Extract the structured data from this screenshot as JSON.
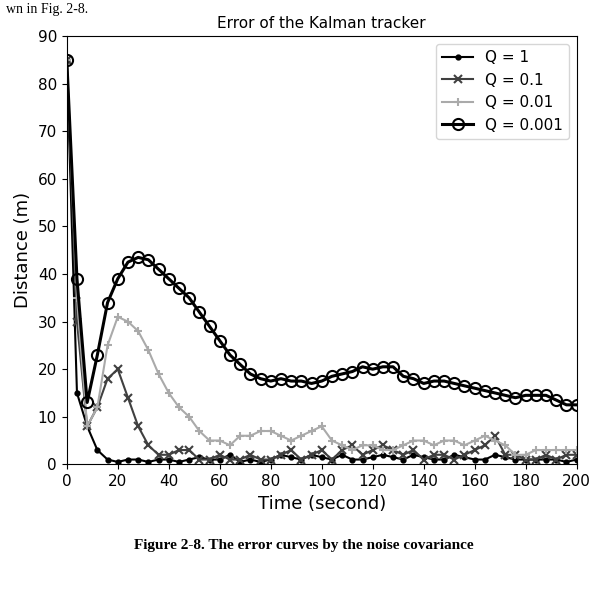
{
  "chart_data": {
    "type": "line",
    "title": "Error of the Kalman tracker",
    "x_label": "Time (second)",
    "y_label": "Distance (m)",
    "annotations": [
      {
        "text": "wn in Fig. 2-8."
      },
      {
        "text": "Figure 2-8. The error curves by the noise covariance"
      }
    ],
    "x": [
      0,
      4,
      8,
      12,
      16,
      20,
      24,
      28,
      32,
      36,
      40,
      44,
      48,
      52,
      56,
      60,
      64,
      68,
      72,
      76,
      80,
      84,
      88,
      92,
      96,
      100,
      104,
      108,
      112,
      116,
      120,
      124,
      128,
      132,
      136,
      140,
      144,
      148,
      152,
      156,
      160,
      164,
      168,
      172,
      176,
      180,
      184,
      188,
      192,
      196,
      200
    ],
    "series": [
      {
        "name": "Q = 1",
        "color": "#000000",
        "marker": "point",
        "line_style": "solid",
        "values": [
          85,
          15,
          8,
          3,
          1,
          0.5,
          1,
          1,
          0.5,
          1,
          1,
          0.5,
          1,
          1.5,
          1,
          1,
          2,
          0.5,
          1,
          0.5,
          1,
          2,
          1.5,
          1,
          2,
          1.5,
          1,
          2,
          1,
          1,
          1.5,
          2,
          1.5,
          1,
          2,
          1.5,
          1,
          1,
          2,
          1.5,
          1,
          1,
          2,
          1.5,
          1,
          1,
          1,
          1,
          1,
          0.5,
          1
        ]
      },
      {
        "name": "Q = 0.1",
        "color": "#404040",
        "marker": "x",
        "line_style": "solid",
        "values": [
          85,
          30,
          8,
          12,
          18,
          20,
          14,
          8,
          4,
          2,
          2,
          3,
          3,
          1,
          1,
          2,
          1,
          1,
          2,
          1,
          1,
          2,
          3,
          1,
          2,
          3,
          1,
          3,
          4,
          2,
          3,
          4,
          3,
          2,
          3,
          1,
          2,
          2,
          1,
          2,
          3,
          4,
          6,
          2,
          2,
          1,
          1,
          2,
          1,
          2,
          2
        ]
      },
      {
        "name": "Q = 0.01",
        "color": "#aaaaaa",
        "marker": "star",
        "line_style": "solid",
        "values": [
          85,
          35,
          8,
          12,
          25,
          31,
          30,
          28,
          24,
          19,
          15,
          12,
          10,
          7,
          5,
          5,
          4,
          6,
          6,
          7,
          7,
          6,
          5,
          6,
          7,
          8,
          5,
          4,
          3,
          4,
          4,
          3,
          3,
          4,
          5,
          5,
          4,
          5,
          5,
          4,
          5,
          6,
          5,
          4,
          2,
          2,
          3,
          3,
          3,
          3,
          3
        ]
      },
      {
        "name": "Q = 0.001",
        "color": "#000000",
        "marker": "circle",
        "line_style": "solid",
        "values": [
          85,
          39,
          13,
          23,
          34,
          39,
          42.5,
          43.5,
          43,
          41,
          39,
          37,
          35,
          32,
          29,
          26,
          23,
          21,
          19,
          18,
          17.5,
          18,
          17.5,
          17.5,
          17,
          17.5,
          18.5,
          19,
          19.5,
          20.5,
          20,
          20.5,
          20.5,
          18.5,
          18,
          17,
          17.5,
          17.5,
          17,
          16.5,
          16,
          15.5,
          15,
          14.5,
          14,
          14.5,
          14.5,
          14.5,
          13.5,
          12.5,
          12.5
        ]
      }
    ],
    "xlim": [
      0,
      200
    ],
    "xticks": [
      0,
      20,
      40,
      60,
      80,
      100,
      120,
      140,
      160,
      180,
      200
    ],
    "ylim": [
      0,
      90
    ],
    "yticks": [
      0,
      10,
      20,
      30,
      40,
      50,
      60,
      70,
      80,
      90
    ],
    "grid": false,
    "legend": "upper right"
  }
}
